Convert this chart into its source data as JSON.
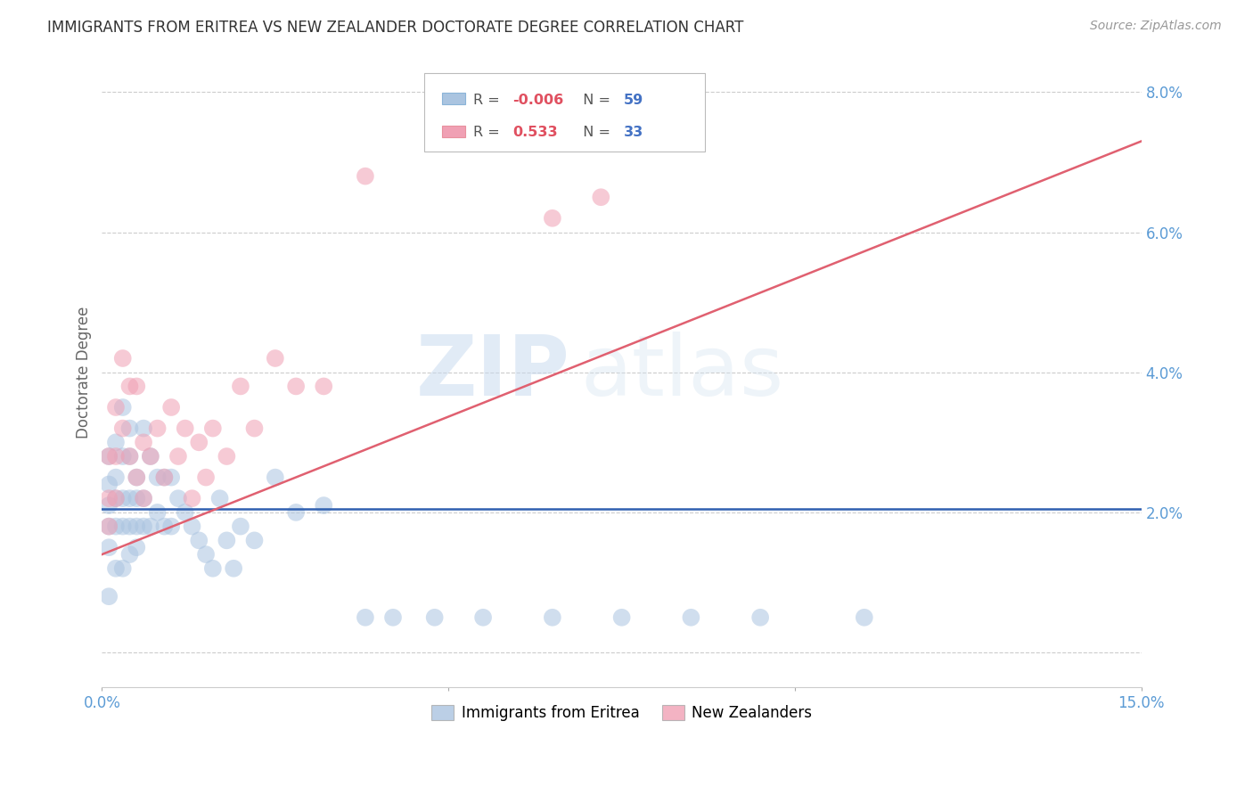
{
  "title": "IMMIGRANTS FROM ERITREA VS NEW ZEALANDER DOCTORATE DEGREE CORRELATION CHART",
  "source": "Source: ZipAtlas.com",
  "ylabel": "Doctorate Degree",
  "xlim": [
    0.0,
    0.15
  ],
  "ylim": [
    -0.005,
    0.085
  ],
  "yticks_right": [
    0.02,
    0.04,
    0.06,
    0.08
  ],
  "watermark_zip": "ZIP",
  "watermark_atlas": "atlas",
  "grid_color": "#cccccc",
  "background_color": "#ffffff",
  "blue_color": "#aac4e0",
  "pink_color": "#f0a0b4",
  "blue_line_color": "#3060b0",
  "pink_line_color": "#e06070",
  "title_color": "#333333",
  "axis_label_color": "#5b9bd5",
  "ylabel_color": "#666666",
  "blue_line_y0": 0.0205,
  "blue_line_y1": 0.0205,
  "pink_line_x0": 0.0,
  "pink_line_x1": 0.15,
  "pink_line_y0": 0.014,
  "pink_line_y1": 0.073,
  "blue_scatter_x": [
    0.001,
    0.001,
    0.001,
    0.001,
    0.001,
    0.001,
    0.002,
    0.002,
    0.002,
    0.002,
    0.002,
    0.003,
    0.003,
    0.003,
    0.003,
    0.003,
    0.004,
    0.004,
    0.004,
    0.004,
    0.004,
    0.005,
    0.005,
    0.005,
    0.005,
    0.006,
    0.006,
    0.006,
    0.007,
    0.007,
    0.008,
    0.008,
    0.009,
    0.009,
    0.01,
    0.01,
    0.011,
    0.012,
    0.013,
    0.014,
    0.015,
    0.016,
    0.017,
    0.018,
    0.019,
    0.02,
    0.022,
    0.025,
    0.028,
    0.032,
    0.038,
    0.042,
    0.048,
    0.055,
    0.065,
    0.075,
    0.085,
    0.095,
    0.11
  ],
  "blue_scatter_y": [
    0.028,
    0.024,
    0.021,
    0.018,
    0.015,
    0.008,
    0.03,
    0.025,
    0.022,
    0.018,
    0.012,
    0.035,
    0.028,
    0.022,
    0.018,
    0.012,
    0.032,
    0.028,
    0.022,
    0.018,
    0.014,
    0.025,
    0.022,
    0.018,
    0.015,
    0.032,
    0.022,
    0.018,
    0.028,
    0.018,
    0.025,
    0.02,
    0.025,
    0.018,
    0.025,
    0.018,
    0.022,
    0.02,
    0.018,
    0.016,
    0.014,
    0.012,
    0.022,
    0.016,
    0.012,
    0.018,
    0.016,
    0.025,
    0.02,
    0.021,
    0.005,
    0.005,
    0.005,
    0.005,
    0.005,
    0.005,
    0.005,
    0.005,
    0.005
  ],
  "pink_scatter_x": [
    0.001,
    0.001,
    0.001,
    0.002,
    0.002,
    0.002,
    0.003,
    0.003,
    0.004,
    0.004,
    0.005,
    0.005,
    0.006,
    0.006,
    0.007,
    0.008,
    0.009,
    0.01,
    0.011,
    0.012,
    0.013,
    0.014,
    0.015,
    0.016,
    0.018,
    0.02,
    0.022,
    0.025,
    0.028,
    0.032,
    0.038,
    0.065,
    0.072
  ],
  "pink_scatter_y": [
    0.028,
    0.022,
    0.018,
    0.035,
    0.028,
    0.022,
    0.042,
    0.032,
    0.038,
    0.028,
    0.038,
    0.025,
    0.03,
    0.022,
    0.028,
    0.032,
    0.025,
    0.035,
    0.028,
    0.032,
    0.022,
    0.03,
    0.025,
    0.032,
    0.028,
    0.038,
    0.032,
    0.042,
    0.038,
    0.038,
    0.068,
    0.062,
    0.065
  ]
}
